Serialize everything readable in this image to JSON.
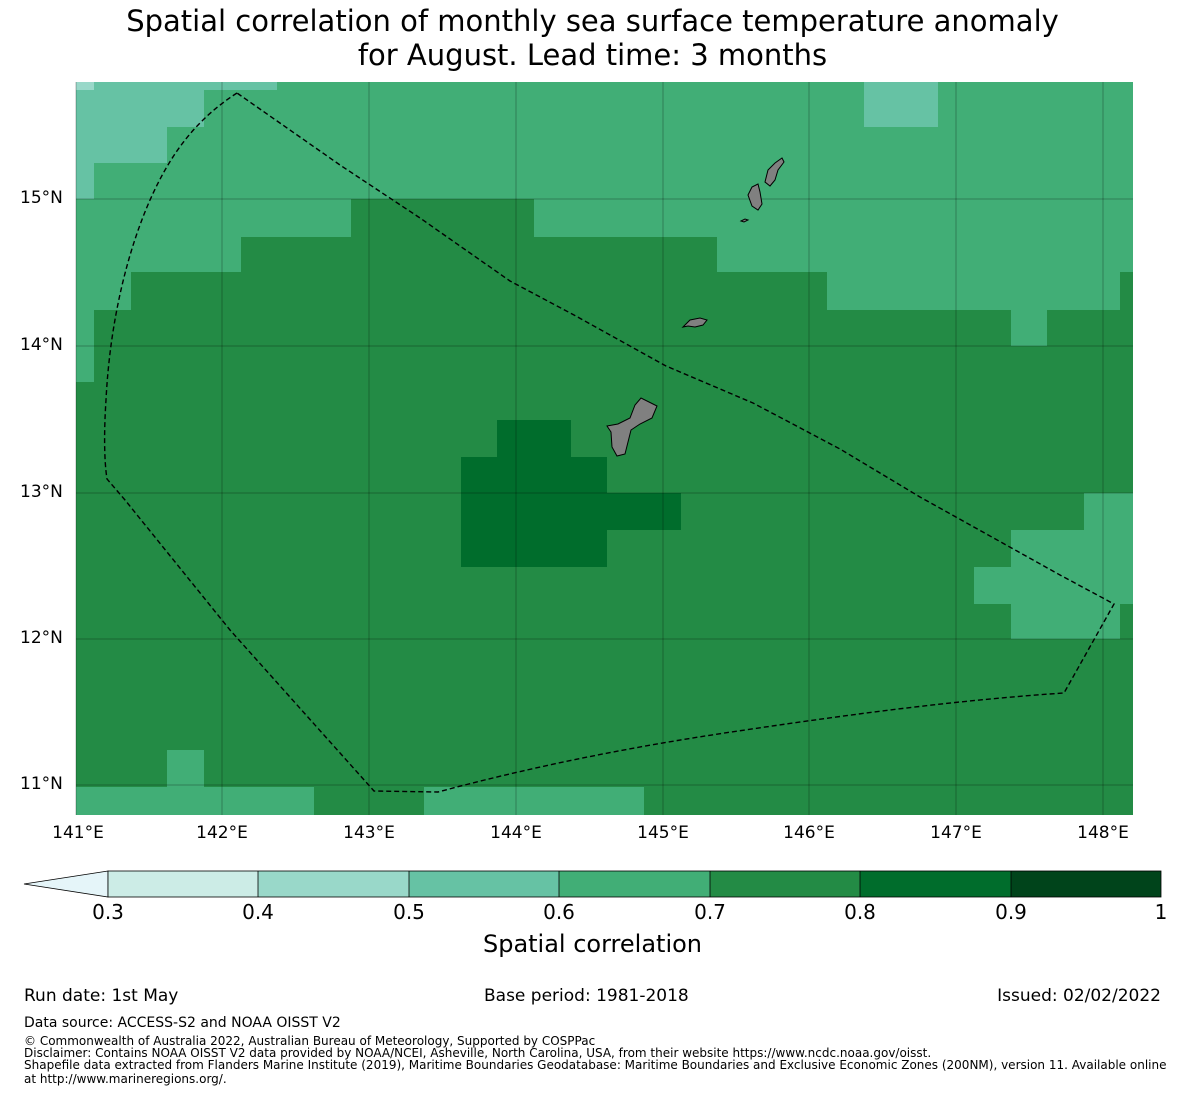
{
  "title": {
    "line1": "Spatial correlation of monthly sea surface temperature anomaly",
    "line2": "for August. Lead time: 3 months"
  },
  "map": {
    "lat_labels": [
      "15°N",
      "14°N",
      "13°N",
      "12°N",
      "11°N"
    ],
    "lon_labels": [
      "141°E",
      "142°E",
      "143°E",
      "144°E",
      "145°E",
      "146°E",
      "147°E",
      "148°E"
    ],
    "land_color": "#808080",
    "boundary_style": "dashed black line (maritime boundary / EEZ)"
  },
  "colorbar": {
    "tick_labels": [
      "0.3",
      "0.4",
      "0.5",
      "0.6",
      "0.7",
      "0.8",
      "0.9",
      "1"
    ],
    "colors": [
      "#e5f5f9",
      "#ccece6",
      "#99d8c9",
      "#66c2a4",
      "#41ae76",
      "#238b45",
      "#006d2c",
      "#00441b"
    ],
    "extend": "min",
    "title": "Spatial correlation"
  },
  "footer": {
    "run_date": "Run date: 1st May",
    "base_period": "Base period: 1981-2018",
    "issued": "Issued: 02/02/2022",
    "data_source": "Data source: ACCESS-S2 and NOAA OISST V2",
    "copyright": "© Commonwealth of Australia 2022, Australian Bureau of Meteorology, Supported by COSPPac",
    "disclaimer": "Disclaimer: Contains NOAA OISST V2 data provided by NOAA/NCEI, Asheville, North Carolina, USA, from their website https://www.ncdc.noaa.gov/oisst.",
    "shapefile": "Shapefile data extracted from Flanders Marine Institute (2019), Maritime Boundaries Geodatabase: Maritime Boundaries and Exclusive Economic Zones (200NM), version 11. Available online at http://www.marineregions.org/."
  }
}
